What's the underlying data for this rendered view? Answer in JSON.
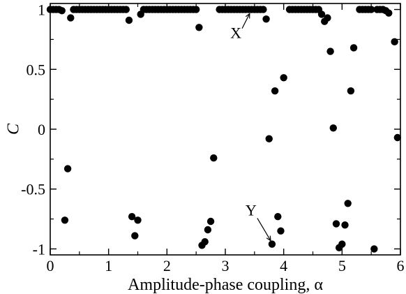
{
  "chart_data": {
    "type": "scatter",
    "title": "",
    "xlabel": "Amplitude-phase coupling, α",
    "ylabel": "C",
    "xlim": [
      0,
      6
    ],
    "ylim": [
      -1.05,
      1.05
    ],
    "grid": false,
    "legend": "none",
    "x_ticks": [
      0,
      1,
      2,
      3,
      4,
      5,
      6
    ],
    "x_tick_labels": [
      "0",
      "1",
      "2",
      "3",
      "4",
      "5",
      "6"
    ],
    "y_ticks": [
      -1,
      -0.5,
      0,
      0.5,
      1
    ],
    "y_tick_labels": [
      "-1",
      "-0.5",
      "0",
      "0.5",
      "1"
    ],
    "marker_color": "#000000",
    "points": [
      [
        0.0,
        1.0
      ],
      [
        0.05,
        1.0
      ],
      [
        0.1,
        1.0
      ],
      [
        0.15,
        1.0
      ],
      [
        0.2,
        0.99
      ],
      [
        0.25,
        -0.76
      ],
      [
        0.3,
        -0.33
      ],
      [
        0.35,
        0.93
      ],
      [
        0.4,
        1.0
      ],
      [
        0.45,
        1.0
      ],
      [
        0.5,
        1.0
      ],
      [
        0.55,
        1.0
      ],
      [
        0.6,
        1.0
      ],
      [
        0.65,
        1.0
      ],
      [
        0.7,
        1.0
      ],
      [
        0.75,
        1.0
      ],
      [
        0.8,
        1.0
      ],
      [
        0.85,
        1.0
      ],
      [
        0.9,
        1.0
      ],
      [
        0.95,
        1.0
      ],
      [
        1.0,
        1.0
      ],
      [
        1.05,
        1.0
      ],
      [
        1.1,
        1.0
      ],
      [
        1.15,
        1.0
      ],
      [
        1.2,
        1.0
      ],
      [
        1.25,
        1.0
      ],
      [
        1.3,
        1.0
      ],
      [
        1.35,
        0.91
      ],
      [
        1.4,
        -0.73
      ],
      [
        1.45,
        -0.89
      ],
      [
        1.5,
        -0.76
      ],
      [
        1.55,
        0.96
      ],
      [
        1.6,
        1.0
      ],
      [
        1.65,
        1.0
      ],
      [
        1.7,
        1.0
      ],
      [
        1.75,
        1.0
      ],
      [
        1.8,
        1.0
      ],
      [
        1.85,
        1.0
      ],
      [
        1.9,
        1.0
      ],
      [
        1.95,
        1.0
      ],
      [
        2.0,
        1.0
      ],
      [
        2.05,
        1.0
      ],
      [
        2.1,
        1.0
      ],
      [
        2.15,
        1.0
      ],
      [
        2.2,
        1.0
      ],
      [
        2.25,
        1.0
      ],
      [
        2.3,
        1.0
      ],
      [
        2.35,
        1.0
      ],
      [
        2.4,
        1.0
      ],
      [
        2.45,
        1.0
      ],
      [
        2.5,
        1.0
      ],
      [
        2.55,
        0.85
      ],
      [
        2.6,
        -0.97
      ],
      [
        2.65,
        -0.94
      ],
      [
        2.7,
        -0.84
      ],
      [
        2.75,
        -0.77
      ],
      [
        2.8,
        -0.24
      ],
      [
        2.9,
        1.0
      ],
      [
        2.95,
        1.0
      ],
      [
        3.0,
        1.0
      ],
      [
        3.05,
        1.0
      ],
      [
        3.1,
        1.0
      ],
      [
        3.15,
        1.0
      ],
      [
        3.2,
        1.0
      ],
      [
        3.25,
        1.0
      ],
      [
        3.3,
        1.0
      ],
      [
        3.35,
        1.0
      ],
      [
        3.4,
        1.0
      ],
      [
        3.45,
        1.0
      ],
      [
        3.5,
        1.0
      ],
      [
        3.55,
        1.0
      ],
      [
        3.6,
        1.0
      ],
      [
        3.65,
        1.0
      ],
      [
        3.7,
        0.92
      ],
      [
        3.75,
        -0.08
      ],
      [
        3.8,
        -0.96
      ],
      [
        3.85,
        0.32
      ],
      [
        3.9,
        -0.73
      ],
      [
        3.95,
        -0.85
      ],
      [
        4.0,
        0.43
      ],
      [
        4.1,
        1.0
      ],
      [
        4.15,
        1.0
      ],
      [
        4.2,
        1.0
      ],
      [
        4.25,
        1.0
      ],
      [
        4.3,
        1.0
      ],
      [
        4.35,
        1.0
      ],
      [
        4.4,
        1.0
      ],
      [
        4.45,
        1.0
      ],
      [
        4.5,
        1.0
      ],
      [
        4.55,
        1.0
      ],
      [
        4.6,
        1.0
      ],
      [
        4.65,
        0.96
      ],
      [
        4.7,
        0.9
      ],
      [
        4.75,
        0.93
      ],
      [
        4.8,
        0.65
      ],
      [
        4.85,
        0.01
      ],
      [
        4.9,
        -0.79
      ],
      [
        4.95,
        -0.99
      ],
      [
        5.0,
        -0.96
      ],
      [
        5.05,
        -0.8
      ],
      [
        5.1,
        -0.62
      ],
      [
        5.15,
        0.32
      ],
      [
        5.2,
        0.68
      ],
      [
        5.3,
        1.0
      ],
      [
        5.35,
        1.0
      ],
      [
        5.4,
        1.0
      ],
      [
        5.45,
        1.0
      ],
      [
        5.5,
        1.0
      ],
      [
        5.55,
        -1.0
      ],
      [
        5.6,
        1.0
      ],
      [
        5.65,
        1.0
      ],
      [
        5.7,
        1.0
      ],
      [
        5.75,
        0.99
      ],
      [
        5.8,
        0.97
      ],
      [
        5.9,
        0.73
      ],
      [
        5.95,
        -0.07
      ]
    ],
    "annotations": [
      {
        "text": "X",
        "target": [
          3.44,
          1.0
        ],
        "label_at": [
          3.18,
          0.76
        ]
      },
      {
        "text": "Y",
        "target": [
          3.8,
          -0.96
        ],
        "label_at": [
          3.44,
          -0.72
        ]
      }
    ]
  }
}
